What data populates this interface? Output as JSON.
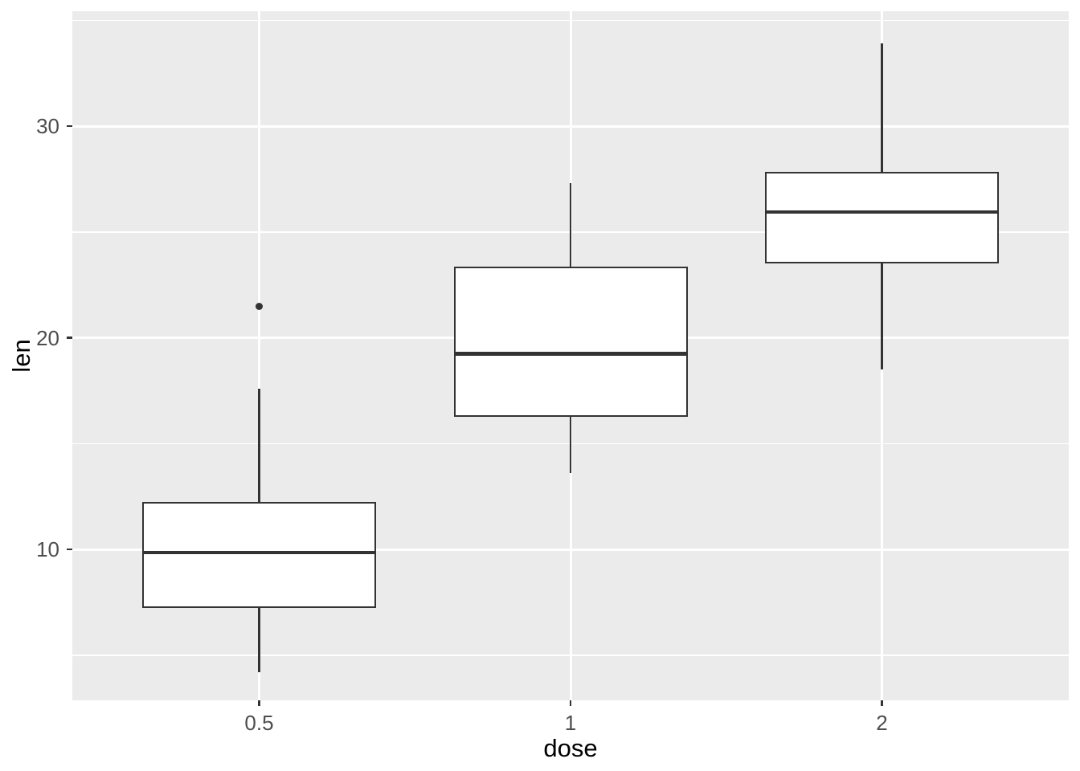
{
  "chart_data": {
    "type": "boxplot",
    "title": "",
    "xlabel": "dose",
    "ylabel": "len",
    "categories": [
      "0.5",
      "1",
      "2"
    ],
    "series": [
      {
        "category": "0.5",
        "lower_whisker": 4.2,
        "q1": 7.225,
        "median": 9.85,
        "q3": 12.25,
        "upper_whisker": 17.6,
        "outliers": [
          21.5
        ]
      },
      {
        "category": "1",
        "lower_whisker": 13.6,
        "q1": 16.25,
        "median": 19.25,
        "q3": 23.375,
        "upper_whisker": 27.3,
        "outliers": []
      },
      {
        "category": "2",
        "lower_whisker": 18.5,
        "q1": 23.525,
        "median": 25.95,
        "q3": 27.825,
        "upper_whisker": 33.9,
        "outliers": []
      }
    ],
    "y_axis": {
      "ticks": [
        10,
        20,
        30
      ],
      "tick_labels": [
        "10",
        "20",
        "30"
      ],
      "minor_ticks": [
        5,
        15,
        25,
        35
      ],
      "ylim": [
        2.87,
        35.43
      ]
    },
    "x_axis": {
      "tick_labels": [
        "0.5",
        "1",
        "2"
      ]
    },
    "legend": "none",
    "grid": true,
    "style": {
      "panel_bg": "#EBEBEB",
      "grid_color": "#FFFFFF",
      "box_stroke": "#333333",
      "box_fill": "#FFFFFF",
      "tick_label_color": "#4D4D4D",
      "axis_title_color": "#000000"
    }
  }
}
